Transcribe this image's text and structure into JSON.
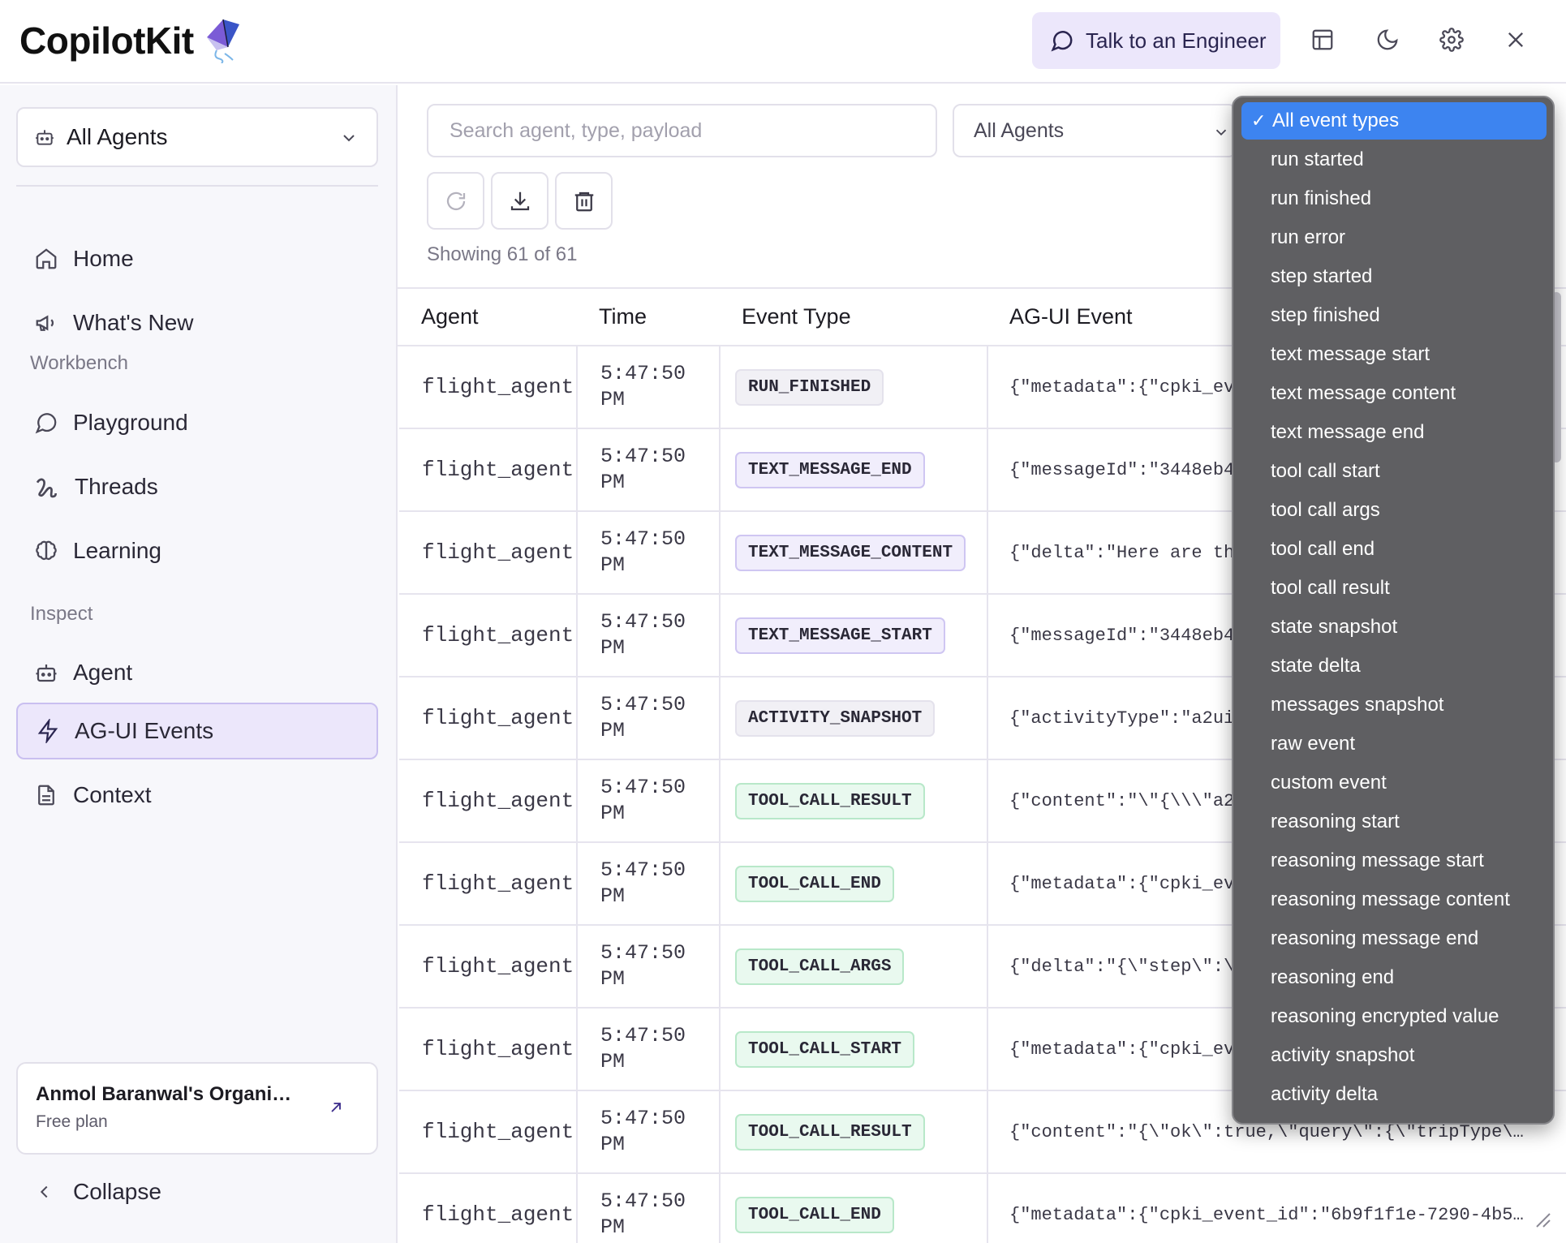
{
  "header": {
    "logo_text": "CopilotKit",
    "talk_button": "Talk to an Engineer"
  },
  "sidebar": {
    "agent_select": "All Agents",
    "nav": [
      {
        "label": "Home",
        "icon": "home-icon"
      },
      {
        "label": "What's New",
        "icon": "megaphone-icon"
      }
    ],
    "workbench_label": "Workbench",
    "workbench": [
      {
        "label": "Playground",
        "icon": "chat-bubble-icon"
      },
      {
        "label": "Threads",
        "icon": "threads-icon"
      },
      {
        "label": "Learning",
        "icon": "brain-icon"
      }
    ],
    "inspect_label": "Inspect",
    "inspect": [
      {
        "label": "Agent",
        "icon": "robot-icon"
      },
      {
        "label": "AG-UI Events",
        "icon": "lightning-icon",
        "active": true
      },
      {
        "label": "Context",
        "icon": "document-icon"
      }
    ],
    "org": {
      "name": "Anmol Baranwal's Organi…",
      "plan": "Free plan"
    },
    "collapse": "Collapse"
  },
  "toolbar": {
    "search_placeholder": "Search agent, type, payload",
    "agents_filter": "All Agents",
    "showing": "Showing 61 of 61"
  },
  "table": {
    "columns": [
      "Agent",
      "Time",
      "Event Type",
      "AG-UI Event"
    ],
    "rows": [
      {
        "agent": "flight_agent",
        "time1": "5:47:50",
        "time2": "PM",
        "type": "RUN_FINISHED",
        "kind": "run",
        "event": "{\"metadata\":{\"cpki_ev"
      },
      {
        "agent": "flight_agent",
        "time1": "5:47:50",
        "time2": "PM",
        "type": "TEXT_MESSAGE_END",
        "kind": "text",
        "event": "{\"messageId\":\"3448eb4"
      },
      {
        "agent": "flight_agent",
        "time1": "5:47:50",
        "time2": "PM",
        "type": "TEXT_MESSAGE_CONTENT",
        "kind": "text",
        "event": "{\"delta\":\"Here are th"
      },
      {
        "agent": "flight_agent",
        "time1": "5:47:50",
        "time2": "PM",
        "type": "TEXT_MESSAGE_START",
        "kind": "text",
        "event": "{\"messageId\":\"3448eb4"
      },
      {
        "agent": "flight_agent",
        "time1": "5:47:50",
        "time2": "PM",
        "type": "ACTIVITY_SNAPSHOT",
        "kind": "run",
        "event": "{\"activityType\":\"a2ui"
      },
      {
        "agent": "flight_agent",
        "time1": "5:47:50",
        "time2": "PM",
        "type": "TOOL_CALL_RESULT",
        "kind": "tool",
        "event": "{\"content\":\"\\\"{\\\\\\\"a2"
      },
      {
        "agent": "flight_agent",
        "time1": "5:47:50",
        "time2": "PM",
        "type": "TOOL_CALL_END",
        "kind": "tool",
        "event": "{\"metadata\":{\"cpki_ev"
      },
      {
        "agent": "flight_agent",
        "time1": "5:47:50",
        "time2": "PM",
        "type": "TOOL_CALL_ARGS",
        "kind": "tool",
        "event": "{\"delta\":\"{\\\"step\\\":\\"
      },
      {
        "agent": "flight_agent",
        "time1": "5:47:50",
        "time2": "PM",
        "type": "TOOL_CALL_START",
        "kind": "tool",
        "event": "{\"metadata\":{\"cpki_ev"
      },
      {
        "agent": "flight_agent",
        "time1": "5:47:50",
        "time2": "PM",
        "type": "TOOL_CALL_RESULT",
        "kind": "tool",
        "event": "{\"content\":\"{\\\"ok\\\":true,\\\"query\\\":{\\\"tripType\\…"
      },
      {
        "agent": "flight_agent",
        "time1": "5:47:50",
        "time2": "PM",
        "type": "TOOL_CALL_END",
        "kind": "tool",
        "event": "{\"metadata\":{\"cpki_event_id\":\"6b9f1f1e-7290-4b5…"
      }
    ]
  },
  "event_type_dropdown": {
    "selected": "All event types",
    "options": [
      "All event types",
      "run started",
      "run finished",
      "run error",
      "step started",
      "step finished",
      "text message start",
      "text message content",
      "text message end",
      "tool call start",
      "tool call args",
      "tool call end",
      "tool call result",
      "state snapshot",
      "state delta",
      "messages snapshot",
      "raw event",
      "custom event",
      "reasoning start",
      "reasoning message start",
      "reasoning message content",
      "reasoning message end",
      "reasoning end",
      "reasoning encrypted value",
      "activity snapshot",
      "activity delta"
    ]
  },
  "colors": {
    "accent": "#ece7fb",
    "dropdown_bg": "#5f5f62",
    "dropdown_selected": "#3d84f0"
  }
}
